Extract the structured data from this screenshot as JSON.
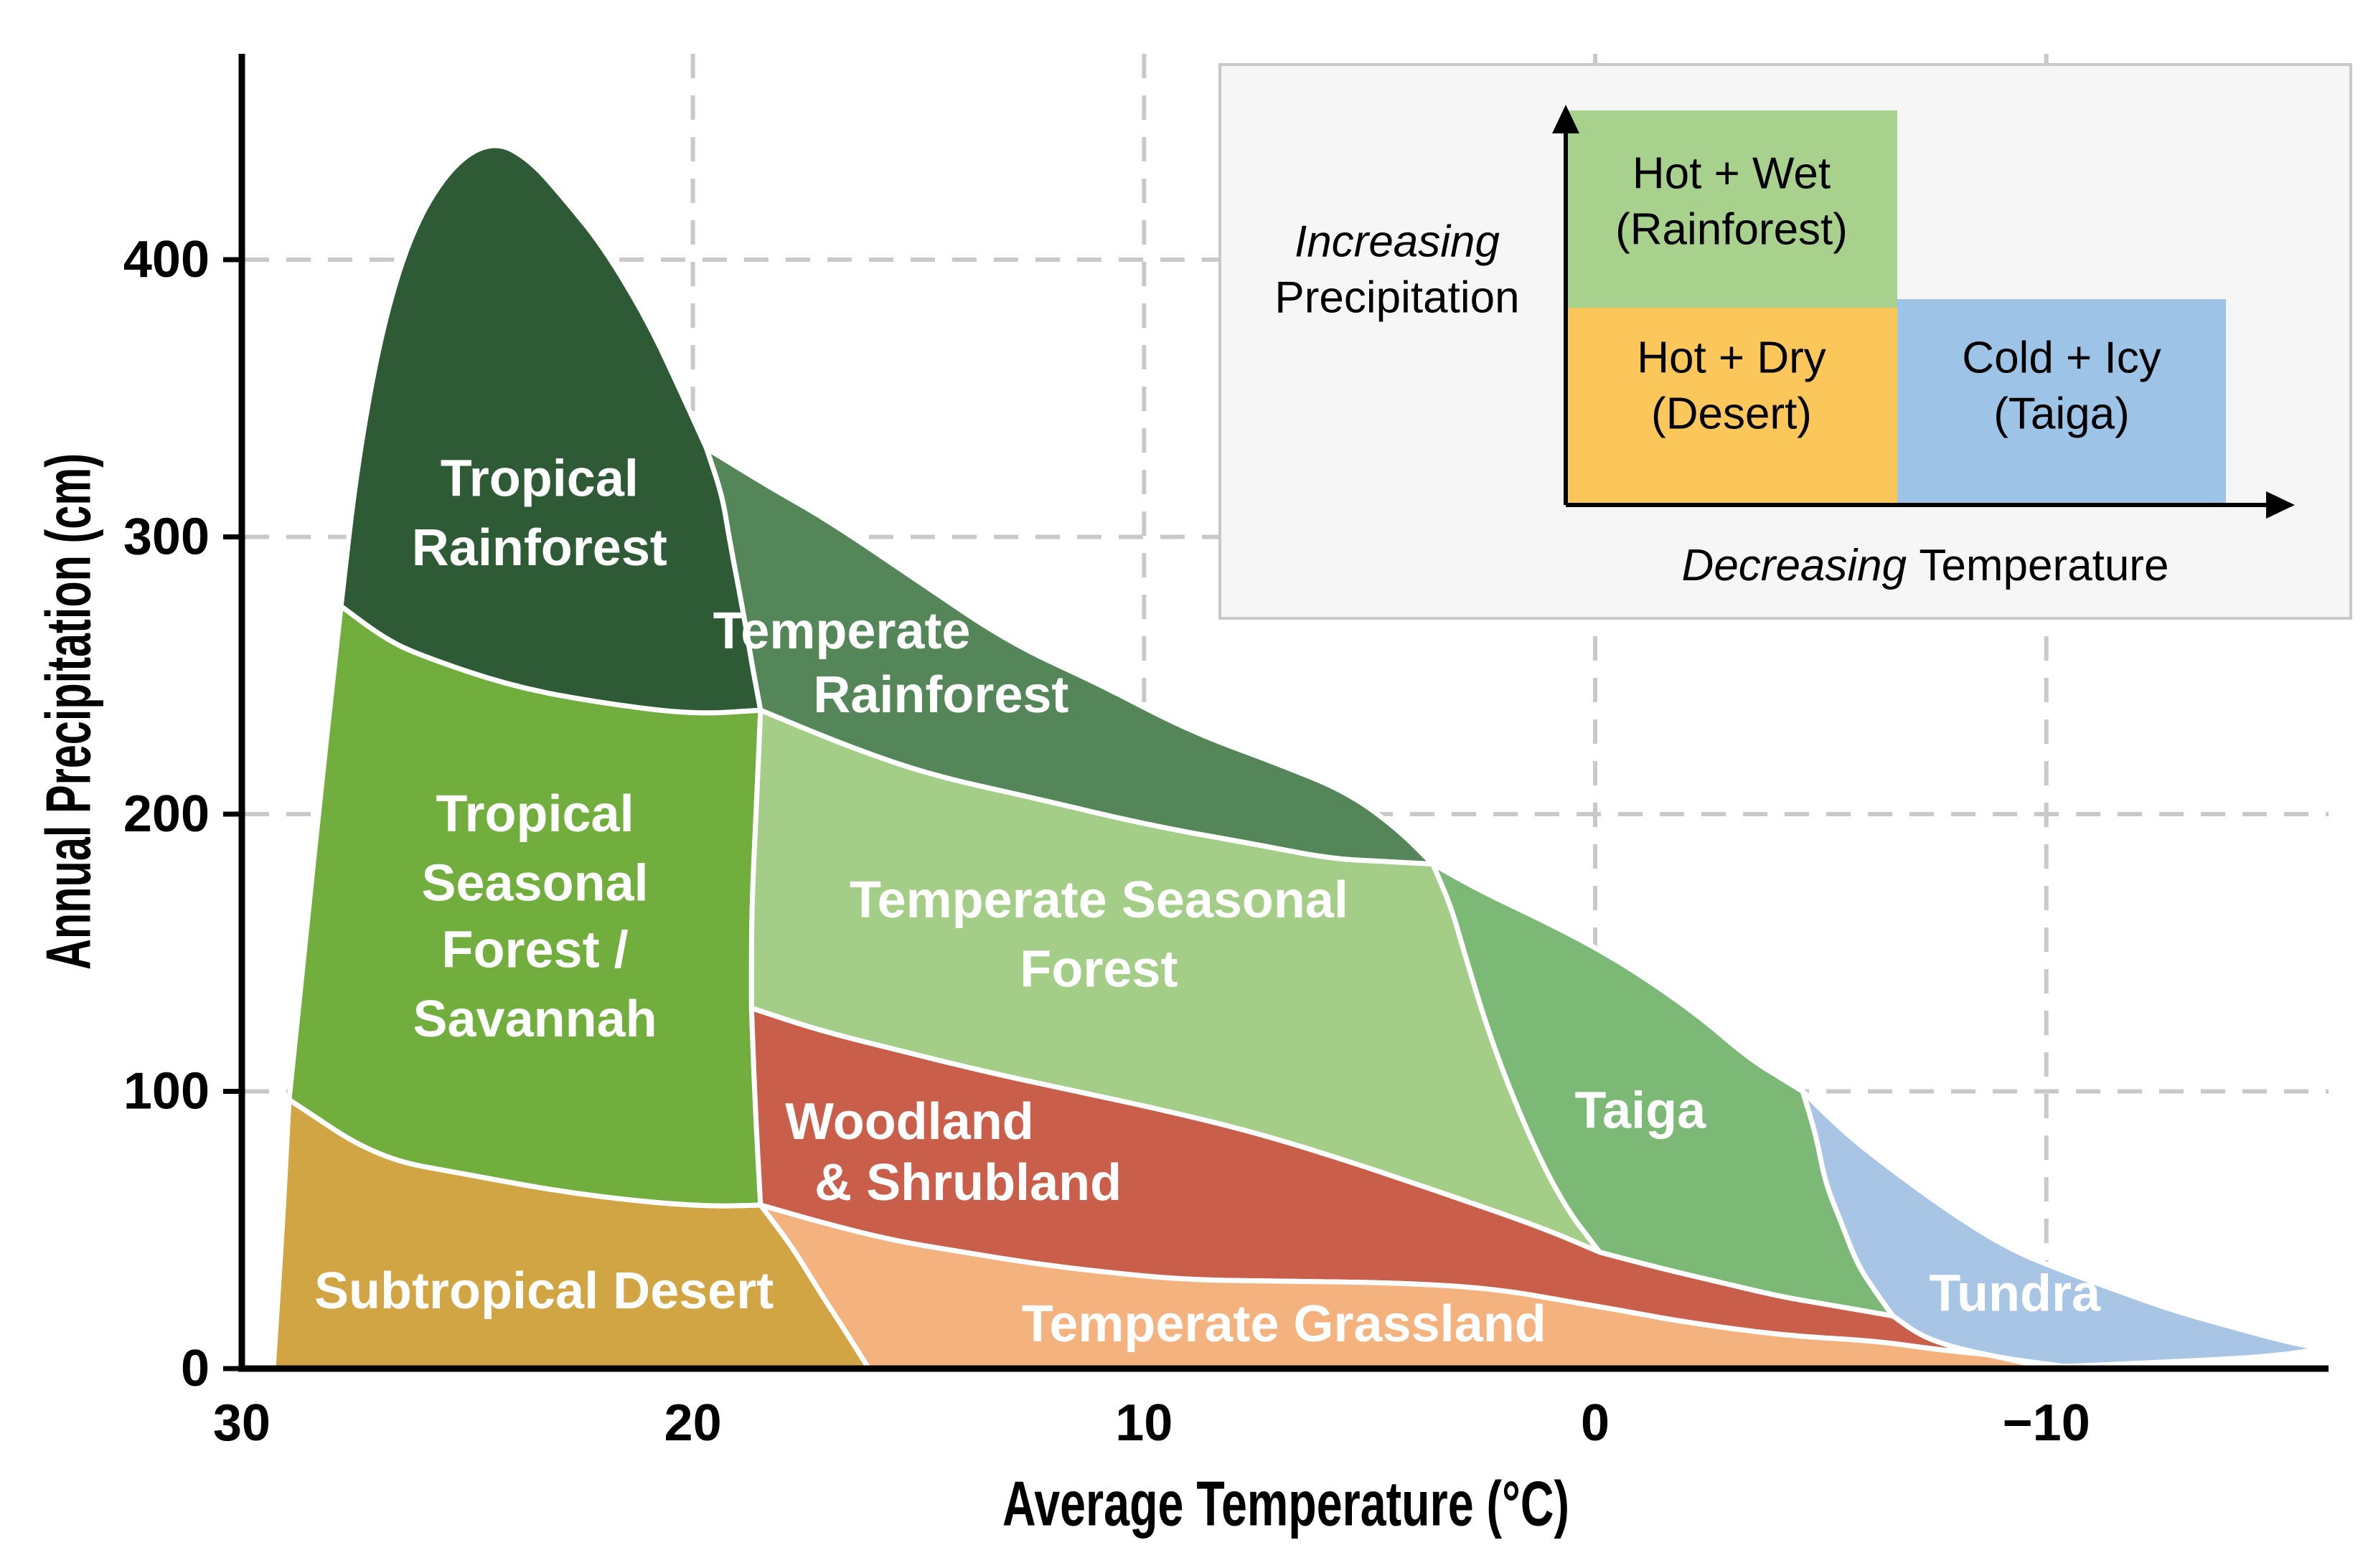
{
  "inset": {
    "background": "#f6f6f6",
    "border": "#c8c8c8",
    "axis_color": "#000000",
    "labels": {
      "increasing": "Increasing",
      "precipitation": "Precipitation",
      "decreasing": "Decreasing",
      "temperature": " Temperature"
    },
    "boxes": [
      {
        "name": "hot-wet",
        "line1": "Hot + Wet",
        "line2": "(Rainforest)",
        "color": "#a9d18e"
      },
      {
        "name": "hot-dry",
        "line1": "Hot + Dry",
        "line2": "(Desert)",
        "color": "#fbc75b"
      },
      {
        "name": "cold-icy",
        "line1": "Cold + Icy",
        "line2": "(Taiga)",
        "color": "#9dc3e6"
      }
    ]
  },
  "chart_data": {
    "type": "area",
    "title": "",
    "xlabel": "Average Temperature (°C)",
    "ylabel": "Annual Precipitation (cm)",
    "xlim": [
      30,
      -16.5
    ],
    "ylim": [
      0,
      474
    ],
    "grid": "dashed",
    "x_ticks": [
      30,
      20,
      10,
      0,
      -10
    ],
    "x_tick_labels": [
      "30",
      "20",
      "10",
      "0",
      "−10"
    ],
    "y_ticks": [
      0,
      100,
      200,
      300,
      400
    ],
    "y_tick_labels": [
      "0",
      "100",
      "200",
      "300",
      "400"
    ],
    "axis_units": {
      "x": "degrees Celsius",
      "y": "cm per year"
    },
    "series": [
      {
        "id": "subtropical-desert",
        "name": "Subtropical Desert",
        "color": "#d2a544",
        "label_lines": [
          {
            "text": "Subtropical Desert",
            "t": 23.3,
            "p": 28
          }
        ],
        "outline": [
          [
            29.3,
            0
          ],
          [
            29.3,
            0
          ],
          [
            29.1,
            50
          ],
          [
            28.95,
            97
          ],
          [
            28.95,
            97
          ],
          [
            27,
            76
          ],
          [
            25,
            70
          ],
          [
            23,
            64
          ],
          [
            21,
            60
          ],
          [
            19.5,
            58.5
          ],
          [
            18.5,
            59
          ],
          [
            18.5,
            59
          ],
          [
            17.8,
            44
          ],
          [
            17.2,
            28
          ],
          [
            16.6,
            13
          ],
          [
            16.1,
            0
          ],
          [
            16.1,
            0
          ]
        ]
      },
      {
        "id": "tropical-seasonal-forest",
        "name": "Tropical Seasonal Forest / Savannah",
        "color": "#72ae3e",
        "label_lines": [
          {
            "text": "Tropical",
            "t": 23.5,
            "p": 200
          },
          {
            "text": "Seasonal",
            "t": 23.5,
            "p": 175
          },
          {
            "text": "Forest /",
            "t": 23.5,
            "p": 151
          },
          {
            "text": "Savannah",
            "t": 23.5,
            "p": 126
          }
        ],
        "outline": [
          [
            28.95,
            97
          ],
          [
            28.95,
            97
          ],
          [
            28.55,
            160
          ],
          [
            28.3,
            200
          ],
          [
            28.0,
            245
          ],
          [
            27.8,
            275
          ],
          [
            27.8,
            275
          ],
          [
            26.8,
            263
          ],
          [
            26,
            257
          ],
          [
            24,
            246
          ],
          [
            22,
            240
          ],
          [
            20,
            236
          ],
          [
            18.5,
            237.5
          ],
          [
            18.5,
            237.5
          ],
          [
            18.6,
            200
          ],
          [
            18.7,
            165
          ],
          [
            18.7,
            130
          ],
          [
            18.7,
            130
          ],
          [
            18.62,
            95
          ],
          [
            18.5,
            59
          ],
          [
            18.5,
            59
          ],
          [
            19.5,
            58.5
          ],
          [
            21,
            60
          ],
          [
            23,
            64
          ],
          [
            25,
            70
          ],
          [
            27,
            76
          ]
        ]
      },
      {
        "id": "tropical-rainforest",
        "name": "Tropical Rainforest",
        "color": "#2e5b36",
        "label_lines": [
          {
            "text": "Tropical",
            "t": 23.4,
            "p": 321
          },
          {
            "text": "Rainforest",
            "t": 23.4,
            "p": 296
          }
        ],
        "outline": [
          [
            27.8,
            275
          ],
          [
            27.8,
            275
          ],
          [
            27.45,
            325
          ],
          [
            26.9,
            375
          ],
          [
            26.2,
            412
          ],
          [
            25.3,
            435
          ],
          [
            24.4,
            443
          ],
          [
            23.6,
            436
          ],
          [
            22.8,
            421
          ],
          [
            22,
            405
          ],
          [
            21,
            378
          ],
          [
            20.2,
            350
          ],
          [
            19.7,
            332
          ],
          [
            19.7,
            332
          ],
          [
            19.35,
            315
          ],
          [
            19.2,
            300
          ],
          [
            18.85,
            270
          ],
          [
            18.7,
            255
          ],
          [
            18.5,
            237.5
          ],
          [
            18.5,
            237.5
          ],
          [
            20,
            236
          ],
          [
            22,
            240
          ],
          [
            24,
            246
          ],
          [
            26,
            257
          ],
          [
            26.8,
            263
          ]
        ]
      },
      {
        "id": "temperate-rainforest",
        "name": "Temperate Rainforest",
        "color": "#558659",
        "label_lines": [
          {
            "text": "Temperate",
            "t": 16.7,
            "p": 266
          },
          {
            "text": "Rainforest",
            "t": 14.5,
            "p": 243
          }
        ],
        "outline": [
          [
            19.7,
            332
          ],
          [
            19.7,
            332
          ],
          [
            18.3,
            318
          ],
          [
            17,
            306
          ],
          [
            15,
            284
          ],
          [
            13,
            262
          ],
          [
            11,
            247
          ],
          [
            9,
            230
          ],
          [
            7,
            218
          ],
          [
            5.5,
            208
          ],
          [
            4.4,
            195
          ],
          [
            3.6,
            182
          ],
          [
            3.6,
            182
          ],
          [
            4.8,
            183
          ],
          [
            5.9,
            184
          ],
          [
            7.5,
            189
          ],
          [
            9.9,
            196
          ],
          [
            12.5,
            206
          ],
          [
            14.7,
            214
          ],
          [
            16.5,
            224
          ],
          [
            18.5,
            237.5
          ],
          [
            18.5,
            237.5
          ],
          [
            18.7,
            255
          ],
          [
            18.85,
            270
          ],
          [
            19.2,
            300
          ],
          [
            19.35,
            315
          ]
        ]
      },
      {
        "id": "temperate-seasonal-forest",
        "name": "Temperate Seasonal Forest",
        "color": "#a4cd87",
        "label_lines": [
          {
            "text": "Temperate Seasonal",
            "t": 11.0,
            "p": 169
          },
          {
            "text": "Forest",
            "t": 11.0,
            "p": 144
          }
        ],
        "outline": [
          [
            18.5,
            237.5
          ],
          [
            18.5,
            237.5
          ],
          [
            16.5,
            224
          ],
          [
            14.7,
            214
          ],
          [
            12.5,
            206
          ],
          [
            9.9,
            196
          ],
          [
            7.5,
            189
          ],
          [
            5.9,
            184
          ],
          [
            4.8,
            183
          ],
          [
            3.6,
            182
          ],
          [
            3.6,
            182
          ],
          [
            3.2,
            167
          ],
          [
            2.9,
            150
          ],
          [
            2.3,
            118
          ],
          [
            1.5,
            85
          ],
          [
            0.7,
            59
          ],
          [
            -0.1,
            42
          ],
          [
            -0.1,
            42
          ],
          [
            1.2,
            51
          ],
          [
            3.5,
            64
          ],
          [
            5.5,
            75
          ],
          [
            7.5,
            85
          ],
          [
            9.5,
            93
          ],
          [
            11.5,
            100
          ],
          [
            13.5,
            107
          ],
          [
            15.5,
            115
          ],
          [
            17.2,
            122
          ],
          [
            18.7,
            130
          ],
          [
            18.7,
            130
          ],
          [
            18.7,
            165
          ],
          [
            18.6,
            200
          ]
        ]
      },
      {
        "id": "woodland-shrubland",
        "name": "Woodland & Shrubland",
        "color": "#c95f4b",
        "label_lines": [
          {
            "text": "Woodland",
            "t": 15.2,
            "p": 89
          },
          {
            "text": "& Shrubland",
            "t": 13.9,
            "p": 67
          }
        ],
        "outline": [
          [
            18.7,
            130
          ],
          [
            18.7,
            130
          ],
          [
            17.2,
            122
          ],
          [
            15.5,
            115
          ],
          [
            13.5,
            107
          ],
          [
            11.5,
            100
          ],
          [
            9.5,
            93
          ],
          [
            7.5,
            85
          ],
          [
            5.5,
            75
          ],
          [
            3.5,
            64
          ],
          [
            1.2,
            51
          ],
          [
            -0.1,
            42
          ],
          [
            -0.1,
            42
          ],
          [
            -1.5,
            36
          ],
          [
            -2.8,
            31
          ],
          [
            -4.1,
            26
          ],
          [
            -5.2,
            23
          ],
          [
            -6.6,
            19
          ],
          [
            -6.6,
            19
          ],
          [
            -7.6,
            12
          ],
          [
            -8.7,
            5
          ],
          [
            -8.7,
            5
          ],
          [
            -7.5,
            7
          ],
          [
            -6.2,
            10
          ],
          [
            -4.1,
            12
          ],
          [
            -1.9,
            17
          ],
          [
            -0.9,
            20
          ],
          [
            0.5,
            24
          ],
          [
            2.3,
            29
          ],
          [
            4.5,
            31
          ],
          [
            6.8,
            31.5
          ],
          [
            9.1,
            32
          ],
          [
            11,
            35
          ],
          [
            12.5,
            38
          ],
          [
            14,
            42
          ],
          [
            15.5,
            46
          ],
          [
            17,
            52
          ],
          [
            18.5,
            59
          ],
          [
            18.5,
            59
          ],
          [
            18.62,
            95
          ]
        ]
      },
      {
        "id": "temperate-grassland",
        "name": "Temperate Grassland",
        "color": "#f4b27f",
        "label_lines": [
          {
            "text": "Temperate Grassland",
            "t": 6.9,
            "p": 16
          }
        ],
        "outline": [
          [
            18.5,
            59
          ],
          [
            18.5,
            59
          ],
          [
            17,
            52
          ],
          [
            15.5,
            46
          ],
          [
            14,
            42
          ],
          [
            12.5,
            38
          ],
          [
            11,
            35
          ],
          [
            9.1,
            32
          ],
          [
            6.8,
            31.5
          ],
          [
            4.5,
            31
          ],
          [
            2.3,
            29
          ],
          [
            0.5,
            24
          ],
          [
            -0.9,
            20
          ],
          [
            -1.9,
            17
          ],
          [
            -4.1,
            12
          ],
          [
            -6.2,
            10
          ],
          [
            -7.5,
            7
          ],
          [
            -8.7,
            5
          ],
          [
            -8.7,
            5
          ],
          [
            -9.4,
            2.5
          ],
          [
            -10.05,
            0
          ],
          [
            -10.05,
            0
          ],
          [
            16.1,
            0
          ],
          [
            16.1,
            0
          ],
          [
            16.6,
            13
          ],
          [
            17.2,
            28
          ],
          [
            17.8,
            44
          ]
        ]
      },
      {
        "id": "taiga",
        "name": "Taiga",
        "color": "#7cb977",
        "label_lines": [
          {
            "text": "Taiga",
            "t": -1.0,
            "p": 93
          }
        ],
        "outline": [
          [
            3.6,
            182
          ],
          [
            3.6,
            182
          ],
          [
            2.5,
            172
          ],
          [
            1.2,
            162
          ],
          [
            0,
            152
          ],
          [
            -1.2,
            140
          ],
          [
            -2.4,
            126
          ],
          [
            -3.4,
            112
          ],
          [
            -4.2,
            104
          ],
          [
            -4.6,
            100
          ],
          [
            -4.6,
            100
          ],
          [
            -4.9,
            84
          ],
          [
            -5.1,
            67
          ],
          [
            -5.45,
            53
          ],
          [
            -5.8,
            38
          ],
          [
            -6.2,
            28
          ],
          [
            -6.6,
            19
          ],
          [
            -6.6,
            19
          ],
          [
            -5.2,
            23
          ],
          [
            -4.1,
            26
          ],
          [
            -2.8,
            31
          ],
          [
            -1.5,
            36
          ],
          [
            -0.1,
            42
          ],
          [
            -0.1,
            42
          ],
          [
            0.7,
            59
          ],
          [
            1.5,
            85
          ],
          [
            2.3,
            118
          ],
          [
            2.9,
            150
          ],
          [
            3.2,
            167
          ]
        ]
      },
      {
        "id": "tundra",
        "name": "Tundra",
        "color": "#a9c5e6",
        "label_lines": [
          {
            "text": "Tundra",
            "t": -9.3,
            "p": 27
          }
        ],
        "outline": [
          [
            -4.6,
            100
          ],
          [
            -4.6,
            100
          ],
          [
            -5.6,
            84
          ],
          [
            -6.8,
            69
          ],
          [
            -8,
            55
          ],
          [
            -9.2,
            43
          ],
          [
            -10.4,
            35
          ],
          [
            -11.6,
            28
          ],
          [
            -12.8,
            21
          ],
          [
            -13.9,
            16
          ],
          [
            -15,
            11
          ],
          [
            -16.1,
            7
          ],
          [
            -16.1,
            7
          ],
          [
            -15,
            4.5
          ],
          [
            -13.9,
            3.4
          ],
          [
            -12.7,
            2.4
          ],
          [
            -11.6,
            1.6
          ],
          [
            -10.4,
            0.8
          ],
          [
            -10.4,
            0.8
          ],
          [
            -9.7,
            2.3
          ],
          [
            -9,
            3.9
          ],
          [
            -7.9,
            7.8
          ],
          [
            -7.2,
            12
          ],
          [
            -6.6,
            19
          ],
          [
            -6.6,
            19
          ],
          [
            -6.2,
            28
          ],
          [
            -5.8,
            38
          ],
          [
            -5.45,
            53
          ],
          [
            -5.1,
            67
          ],
          [
            -4.9,
            84
          ]
        ]
      }
    ]
  }
}
